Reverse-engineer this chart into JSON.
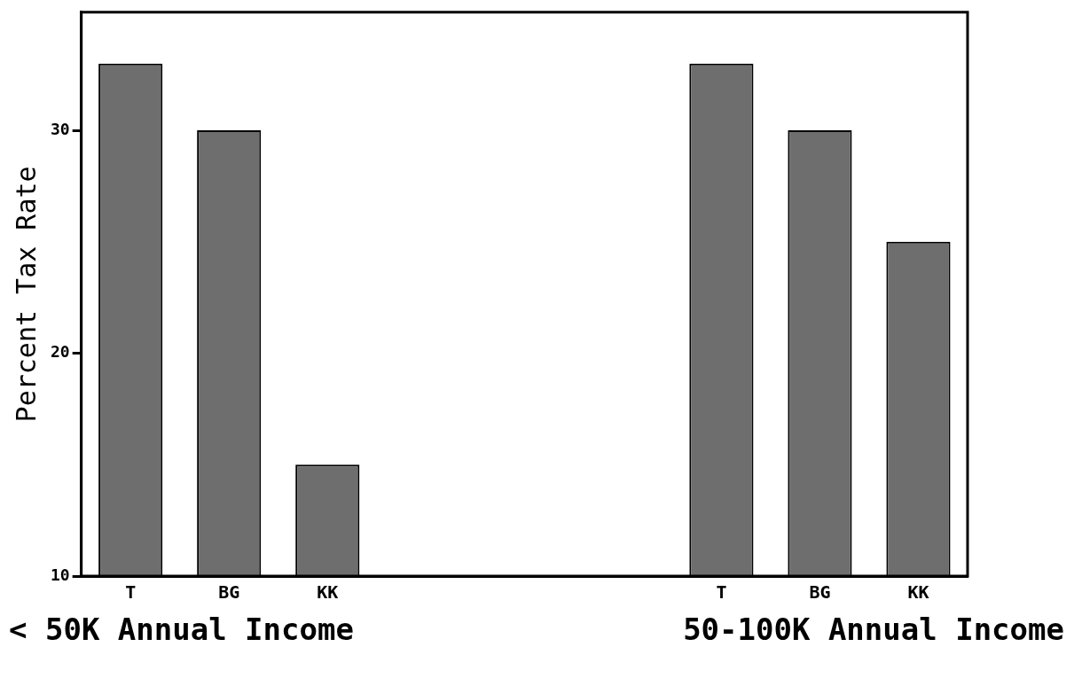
{
  "chart_data": {
    "type": "bar",
    "ylabel": "Percent Tax Rate",
    "categories": [
      "T",
      "BG",
      "KK",
      null,
      null,
      null,
      "T",
      "BG",
      "KK"
    ],
    "values": [
      33,
      30,
      15,
      null,
      null,
      null,
      33,
      30,
      25
    ],
    "color": "#6e6e6e",
    "ylim": [
      10,
      35.3
    ],
    "yticks": [
      10,
      20,
      30
    ],
    "grid": false,
    "legend": false,
    "annotations": [
      "< 50K Annual Income",
      "50-100K Annual Income"
    ]
  }
}
